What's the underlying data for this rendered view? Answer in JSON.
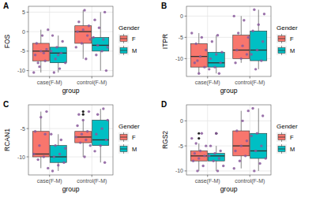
{
  "chart_data": [
    {
      "type": "box",
      "title": "A",
      "y_label": "FOS",
      "x_label": "group",
      "legend_title": "Gender",
      "categories": [
        "case(F-M)",
        "control(F-M)"
      ],
      "ylim": [
        -11.5,
        6.5
      ],
      "yticks": [
        -10,
        -5,
        0,
        5
      ],
      "grid": true,
      "legend": "right",
      "series": [
        {
          "name": "F",
          "color": "#F8766D",
          "boxes": [
            {
              "min": -10.5,
              "q1": -7.5,
              "median": -5,
              "q3": -3,
              "max": 0.5,
              "outliers": []
            },
            {
              "min": -7,
              "q1": -3,
              "median": 0,
              "q3": 1.5,
              "max": 5.5,
              "outliers": []
            }
          ],
          "points": [
            [
              -10.5,
              -9,
              -7.5,
              -6,
              -5,
              -4.5,
              -3,
              -1,
              0.5,
              -8,
              -5.5
            ],
            [
              -7,
              -4,
              -3,
              -1,
              0,
              0.5,
              1.5,
              2.5,
              5.5,
              -2
            ]
          ]
        },
        {
          "name": "M",
          "color": "#00BFC4",
          "boxes": [
            {
              "min": -10.5,
              "q1": -8,
              "median": -5.5,
              "q3": -4,
              "max": -1,
              "outliers": []
            },
            {
              "min": -10,
              "q1": -5,
              "median": -3.5,
              "q3": -1.5,
              "max": 5,
              "outliers": []
            }
          ],
          "points": [
            [
              -10.5,
              -9.5,
              -8,
              -7,
              -5.5,
              -5,
              -4,
              -2.5,
              -1,
              -6
            ],
            [
              -10,
              -6,
              -5,
              -4,
              -3.5,
              -2,
              -1.5,
              1,
              5,
              3
            ]
          ]
        }
      ]
    },
    {
      "type": "box",
      "title": "B",
      "y_label": "ITPR",
      "x_label": "group",
      "legend_title": "Gender",
      "categories": [
        "case(F-M)",
        "control(F-M)"
      ],
      "ylim": [
        -14.2,
        2.3
      ],
      "yticks": [
        -10,
        -5,
        0
      ],
      "grid": true,
      "legend": "right",
      "series": [
        {
          "name": "F",
          "color": "#F8766D",
          "boxes": [
            {
              "min": -13.5,
              "q1": -12,
              "median": -9.5,
              "q3": -6.5,
              "max": -4,
              "outliers": []
            },
            {
              "min": -11,
              "q1": -10,
              "median": -8,
              "q3": -4.5,
              "max": 0,
              "outliers": []
            }
          ],
          "points": [
            [
              -13.5,
              -12,
              -11,
              -9.5,
              -8,
              -6.5,
              -5,
              -4,
              -10.5
            ],
            [
              -11,
              -10,
              -9,
              -8,
              -7,
              -5,
              -4,
              -1,
              0
            ]
          ]
        },
        {
          "name": "M",
          "color": "#00BFC4",
          "boxes": [
            {
              "min": -13.5,
              "q1": -12,
              "median": -11,
              "q3": -8.5,
              "max": -4.5,
              "outliers": []
            },
            {
              "min": -12.5,
              "q1": -10.5,
              "median": -8,
              "q3": -3.5,
              "max": 1.5,
              "outliers": []
            }
          ],
          "points": [
            [
              -13.5,
              -12.5,
              -12,
              -11,
              -10,
              -9,
              -8.5,
              -6,
              -4.5
            ],
            [
              -12.5,
              -10.5,
              -9,
              -8,
              -6,
              -3.5,
              -2,
              0.5,
              1.5
            ]
          ]
        }
      ]
    },
    {
      "type": "box",
      "title": "C",
      "y_label": "RCAN1",
      "x_label": "group",
      "legend_title": "Gender",
      "categories": [
        "case(F-M)",
        "control(F-M)"
      ],
      "ylim": [
        -13.2,
        -0.8
      ],
      "yticks": [
        -10,
        -5
      ],
      "grid": true,
      "legend": "right",
      "series": [
        {
          "name": "F",
          "color": "#F8766D",
          "boxes": [
            {
              "min": -12,
              "q1": -10,
              "median": -9.5,
              "q3": -5.5,
              "max": -2,
              "outliers": []
            },
            {
              "min": -10,
              "q1": -7.5,
              "median": -6.5,
              "q3": -5.5,
              "max": -3.5,
              "outliers": [
                -2,
                -2.5
              ]
            }
          ],
          "points": [
            [
              -12,
              -10.5,
              -10,
              -9.5,
              -8,
              -6,
              -5.5,
              -3,
              -2
            ],
            [
              -10,
              -8,
              -7.5,
              -7,
              -6.5,
              -6,
              -5.5,
              -4.5,
              -3.5,
              -2,
              -2.5
            ]
          ]
        },
        {
          "name": "M",
          "color": "#00BFC4",
          "boxes": [
            {
              "min": -12.5,
              "q1": -11,
              "median": -10,
              "q3": -8,
              "max": -6,
              "outliers": []
            },
            {
              "min": -11,
              "q1": -8,
              "median": -7,
              "q3": -3.5,
              "max": -1.5,
              "outliers": []
            }
          ],
          "points": [
            [
              -12.5,
              -11.5,
              -11,
              -10,
              -9.5,
              -8.5,
              -8,
              -7,
              -6
            ],
            [
              -11,
              -9,
              -8,
              -7,
              -6,
              -5,
              -3.5,
              -2.5,
              -1.5
            ]
          ]
        }
      ]
    },
    {
      "type": "box",
      "title": "D",
      "y_label": "RGS2",
      "x_label": "group",
      "legend_title": "Gender",
      "categories": [
        "case(F-M)",
        "control(F-M)"
      ],
      "ylim": [
        -10.8,
        3.2
      ],
      "yticks": [
        -10,
        -5,
        0
      ],
      "grid": true,
      "legend": "right",
      "series": [
        {
          "name": "F",
          "color": "#F8766D",
          "boxes": [
            {
              "min": -10,
              "q1": -8,
              "median": -7,
              "q3": -6,
              "max": -4.5,
              "outliers": [
                -2.5,
                -3.5
              ]
            },
            {
              "min": -9.5,
              "q1": -7,
              "median": -5,
              "q3": -2,
              "max": 2,
              "outliers": []
            }
          ],
          "points": [
            [
              -10,
              -9,
              -8,
              -7.5,
              -7,
              -6.5,
              -6,
              -5,
              -4.5,
              -2.5,
              -3.5
            ],
            [
              -9.5,
              -8,
              -7,
              -6,
              -5,
              -4,
              -2,
              0,
              2
            ]
          ]
        },
        {
          "name": "M",
          "color": "#00BFC4",
          "boxes": [
            {
              "min": -10,
              "q1": -8,
              "median": -7,
              "q3": -6.5,
              "max": -5,
              "outliers": [
                -2.5
              ]
            },
            {
              "min": -10,
              "q1": -7.5,
              "median": -6,
              "q3": -2.5,
              "max": 2.5,
              "outliers": []
            }
          ],
          "points": [
            [
              -10,
              -9,
              -8,
              -7.5,
              -7,
              -6.5,
              -6,
              -5,
              -2.5
            ],
            [
              -10,
              -8.5,
              -7.5,
              -6,
              -5,
              -3,
              -2.5,
              1,
              2.5
            ]
          ]
        }
      ]
    }
  ]
}
